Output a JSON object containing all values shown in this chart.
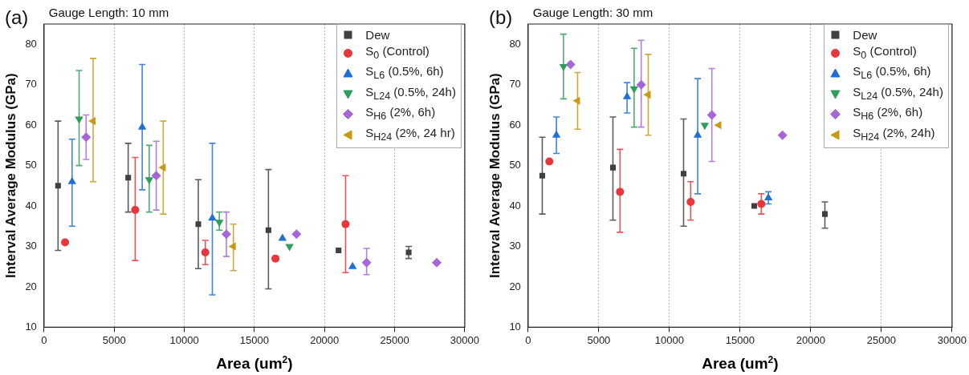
{
  "chart_data": [
    {
      "type": "scatter",
      "title": "Gauge Length: 10 mm",
      "annotations": [
        "(a)"
      ],
      "xlabel": "Area (um$^{2}$)",
      "ylabel": "Interval Average Modulus (GPa)",
      "xlim": [
        0,
        30000
      ],
      "xticks": [
        0,
        5000,
        10000,
        15000,
        20000,
        25000,
        30000
      ],
      "ylim": [
        10,
        85
      ],
      "yticks": [
        10,
        20,
        30,
        40,
        50,
        60,
        70,
        80
      ],
      "grid": "x",
      "legend": "top right",
      "series": [
        {
          "name": "Dew",
          "color": "#404040",
          "marker": "square",
          "x": [
            1000,
            6000,
            11000,
            16000,
            21000,
            26000
          ],
          "values": [
            45,
            47,
            35.5,
            34,
            29,
            28.5
          ],
          "errors": [
            [
              29,
              61
            ],
            [
              38.5,
              55.5
            ],
            [
              24.5,
              46.5
            ],
            [
              19.5,
              49
            ],
            null,
            [
              27,
              30
            ]
          ]
        },
        {
          "name": "S$_{0}$ (Control)",
          "color": "#e8363a",
          "marker": "circle",
          "x": [
            1500,
            6500,
            11500,
            16500,
            21500
          ],
          "values": [
            31,
            39,
            28.5,
            27,
            35.5
          ],
          "errors": [
            null,
            [
              26.5,
              52
            ],
            [
              25.5,
              31.5
            ],
            null,
            [
              23.5,
              47.5
            ]
          ]
        },
        {
          "name": "S$_{L6}$ (0.5%, 6h)",
          "color": "#1f6fd6",
          "marker": "triangle",
          "x": [
            2000,
            7000,
            12000,
            17000,
            22000
          ],
          "values": [
            46,
            59.5,
            37,
            32,
            25
          ],
          "errors": [
            [
              35,
              56.5
            ],
            [
              44,
              75
            ],
            [
              18,
              55.5
            ],
            null,
            null
          ]
        },
        {
          "name": "S$_{L24}$ (0.5%, 24h)",
          "color": "#2e9e5a",
          "marker": "triangle-down",
          "x": [
            2500,
            7500,
            12500,
            17500
          ],
          "values": [
            61.5,
            46.5,
            36,
            30
          ],
          "errors": [
            [
              50,
              73.5
            ],
            [
              38.5,
              55
            ],
            [
              34,
              38.5
            ],
            null
          ]
        },
        {
          "name": "S$_{H6}$ (2%, 6h)",
          "color": "#a666d9",
          "marker": "diamond",
          "x": [
            3000,
            8000,
            13000,
            18000,
            23000,
            28000
          ],
          "values": [
            57,
            47.5,
            33,
            33,
            26,
            26
          ],
          "errors": [
            [
              51.5,
              62.5
            ],
            [
              39,
              56
            ],
            [
              27.5,
              38.5
            ],
            null,
            [
              23,
              29.5
            ],
            null
          ]
        },
        {
          "name": "S$_{H24}$ (2%, 24 hr)",
          "color": "#c89a12",
          "marker": "triangle-left",
          "x": [
            3500,
            8500,
            13500
          ],
          "values": [
            61,
            49.5,
            30
          ],
          "errors": [
            [
              46,
              76.5
            ],
            [
              38,
              61
            ],
            [
              24,
              35.5
            ]
          ]
        }
      ]
    },
    {
      "type": "scatter",
      "title": "Gauge Length: 30 mm",
      "annotations": [
        "(b)"
      ],
      "xlabel": "Area (um$^{2}$)",
      "ylabel": "Interval Average Modulus (GPa)",
      "xlim": [
        0,
        30000
      ],
      "xticks": [
        0,
        5000,
        10000,
        15000,
        20000,
        25000,
        30000
      ],
      "ylim": [
        10,
        85
      ],
      "yticks": [
        10,
        20,
        30,
        40,
        50,
        60,
        70,
        80
      ],
      "grid": "x",
      "legend": "top right",
      "series": [
        {
          "name": "Dew",
          "color": "#404040",
          "marker": "square",
          "x": [
            1000,
            6000,
            11000,
            16000,
            21000
          ],
          "values": [
            47.5,
            49.5,
            48,
            40,
            38
          ],
          "errors": [
            [
              38,
              57
            ],
            [
              36.5,
              62
            ],
            [
              35,
              61.5
            ],
            null,
            [
              34.5,
              41
            ]
          ]
        },
        {
          "name": "S$_{0}$ (Control)",
          "color": "#e8363a",
          "marker": "circle",
          "x": [
            1500,
            6500,
            11500,
            16500
          ],
          "values": [
            51,
            43.5,
            41,
            40.5
          ],
          "errors": [
            null,
            [
              33.5,
              54
            ],
            [
              36.5,
              46
            ],
            [
              38,
              43
            ]
          ]
        },
        {
          "name": "S$_{L6}$ (0.5%, 6h)",
          "color": "#1f6fd6",
          "marker": "triangle",
          "x": [
            2000,
            7000,
            12000,
            17000
          ],
          "values": [
            57.5,
            67,
            57.5,
            42
          ],
          "errors": [
            [
              53,
              62
            ],
            [
              63,
              70.5
            ],
            [
              43,
              71.5
            ],
            [
              40.5,
              43.5
            ]
          ]
        },
        {
          "name": "S$_{L24}$ (0.5%, 24h)",
          "color": "#2e9e5a",
          "marker": "triangle-down",
          "x": [
            2500,
            7500,
            12500
          ],
          "values": [
            74.5,
            69,
            60
          ],
          "errors": [
            [
              66.5,
              82.5
            ],
            [
              59.5,
              79
            ],
            null
          ]
        },
        {
          "name": "S$_{H6}$ (2%, 6h)",
          "color": "#a666d9",
          "marker": "diamond",
          "x": [
            3000,
            8000,
            13000,
            18000
          ],
          "values": [
            75,
            70,
            62.5,
            57.5
          ],
          "errors": [
            null,
            [
              59.5,
              81
            ],
            [
              51,
              74
            ],
            null
          ]
        },
        {
          "name": "S$_{H24}$ (2%, 24h)",
          "color": "#c89a12",
          "marker": "triangle-left",
          "x": [
            3500,
            8500,
            13500
          ],
          "values": [
            66,
            67.5,
            60
          ],
          "errors": [
            [
              59,
              73
            ],
            [
              57.5,
              77.5
            ],
            null
          ]
        }
      ]
    }
  ]
}
